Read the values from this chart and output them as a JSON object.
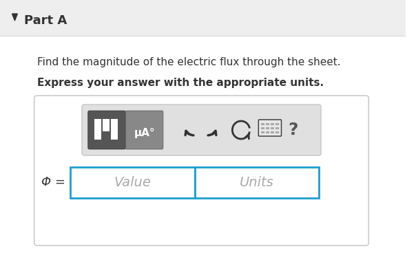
{
  "bg_color": "#f5f5f5",
  "white": "#ffffff",
  "header_bg": "#eeeeee",
  "header_text": "Part A",
  "body_text1": "Find the magnitude of the electric flux through the sheet.",
  "body_text2": "Express your answer with the appropriate units.",
  "phi_label": "Φ =",
  "value_placeholder": "Value",
  "units_placeholder": "Units",
  "box_border_color": "#1a9fcc",
  "toolbar_bg": "#e0e0e0",
  "icon_bg1": "#555555",
  "icon_bg2": "#777777",
  "card_bg": "#f9f9f9",
  "card_border": "#cccccc",
  "text_color": "#333333",
  "question_mark_color": "#555555"
}
